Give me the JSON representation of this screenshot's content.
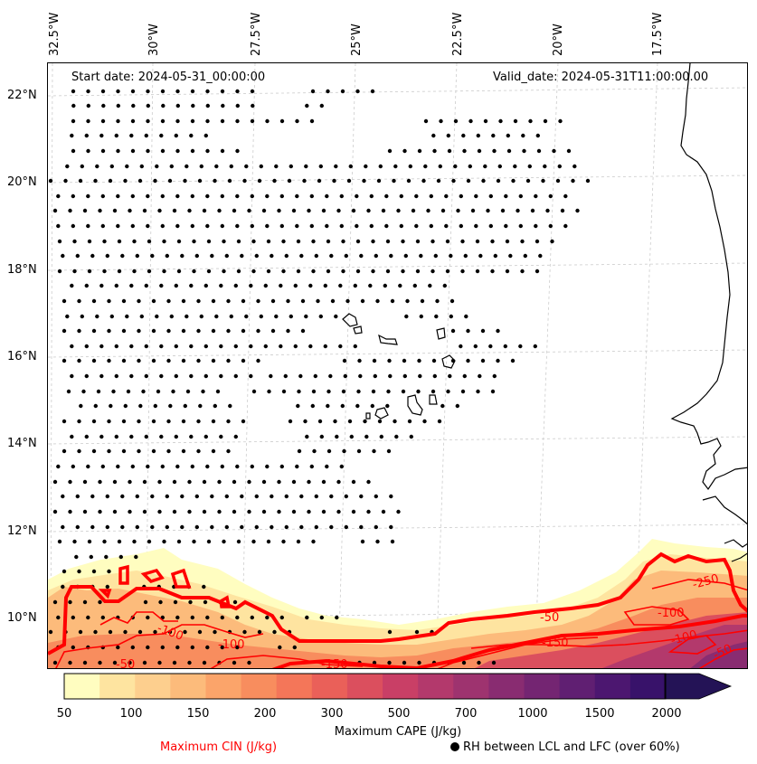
{
  "header": {
    "start_date": "Start date: 2024-05-31_00:00:00",
    "valid_date": "Valid_date: 2024-05-31T11:00:00.00"
  },
  "axes": {
    "longitude_labels": [
      "32.5°W",
      "30°W",
      "27.5°W",
      "25°W",
      "22.5°W",
      "20°W",
      "17.5°W"
    ],
    "latitude_labels": [
      "22°N",
      "20°N",
      "18°N",
      "16°N",
      "14°N",
      "12°N",
      "10°N"
    ]
  },
  "colorbar": {
    "title": "Maximum CAPE (J/kg)",
    "ticks": [
      "50",
      "100",
      "150",
      "200",
      "300",
      "500",
      "700",
      "1000",
      "1500",
      "2000"
    ],
    "colors": [
      "#fffdc0",
      "#fee4a0",
      "#fdcf8e",
      "#fcbb7b",
      "#fba46a",
      "#f88d5e",
      "#f47659",
      "#ea6059",
      "#db4f5e",
      "#c93f66",
      "#b3396c",
      "#9e336f",
      "#892c71",
      "#742572",
      "#601f72",
      "#4c1770",
      "#38126a",
      "#241356"
    ]
  },
  "legend": {
    "cin_label": "Maximum CIN (J/kg)",
    "rh_label": "RH between LCL and LFC (over 60%)"
  },
  "cin_contour_labels": [
    "-50",
    "-100",
    "-150",
    "-100",
    "-50",
    "-250",
    "-100",
    "-150",
    "-100",
    "-50"
  ],
  "colors": {
    "cin_line": "#ff0000",
    "coast": "#000000",
    "grid": "#cccccc"
  }
}
